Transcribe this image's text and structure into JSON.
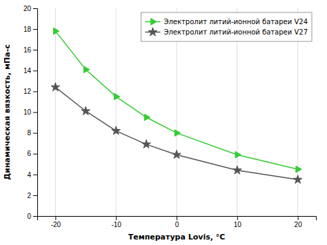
{
  "chart_data": {
    "type": "line",
    "x": [
      -20,
      -15,
      -10,
      -5,
      0,
      10,
      20
    ],
    "series": [
      {
        "name": "Электролит литий-ионной батареи V24",
        "color": "#33cc33",
        "marker": "triangle-right",
        "values": [
          17.8,
          14.1,
          11.5,
          9.5,
          8.0,
          5.9,
          4.5
        ]
      },
      {
        "name": "Электролит литий-ионной батареи V27",
        "color": "#555555",
        "marker": "star",
        "values": [
          12.4,
          10.1,
          8.2,
          6.9,
          5.9,
          4.4,
          3.5
        ]
      }
    ],
    "x_label": "Температура Lovis, °C",
    "y_label": "Динамическая вязкость, мПа-с",
    "xlim": [
      -23,
      23
    ],
    "ylim": [
      0,
      20
    ],
    "xticks": [
      -20,
      -10,
      0,
      10,
      20
    ],
    "yticks": [
      0,
      2,
      4,
      6,
      8,
      10,
      12,
      14,
      16,
      18,
      20
    ],
    "grid": "x",
    "legend": "upper right"
  }
}
